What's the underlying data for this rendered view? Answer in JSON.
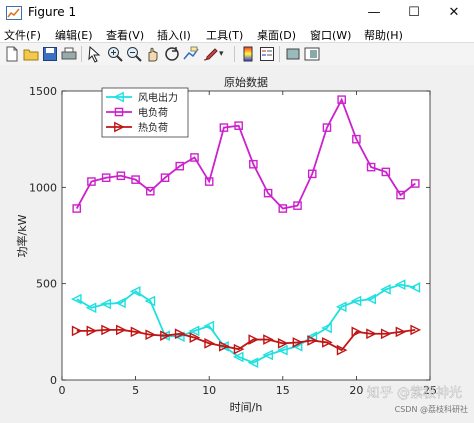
{
  "window": {
    "title": "Figure 1"
  },
  "controls": {
    "minimize": "—",
    "maximize": "☐",
    "close": "✕"
  },
  "menu": [
    "文件(F)",
    "编辑(E)",
    "查看(V)",
    "插入(I)",
    "工具(T)",
    "桌面(D)",
    "窗口(W)",
    "帮助(H)"
  ],
  "toolbar": [
    "new-file-icon",
    "open-folder-icon",
    "save-icon",
    "print-icon",
    "pointer-icon",
    "zoom-in-icon",
    "zoom-out-icon",
    "pan-icon",
    "rotate-icon",
    "data-cursor-icon",
    "brush-icon",
    "colorbar-icon",
    "legend-icon",
    "hide-plot-tools-icon",
    "show-plot-tools-icon"
  ],
  "watermark": {
    "main": "知乎 @紫极神光",
    "sub": "CSDN @荔枝科研社"
  },
  "chart_data": {
    "type": "line",
    "title": "原始数据",
    "xlabel": "时间/h",
    "ylabel": "功率/kW",
    "xlim": [
      0,
      25
    ],
    "ylim": [
      0,
      1500
    ],
    "xticks": [
      0,
      5,
      10,
      15,
      20,
      25
    ],
    "yticks": [
      0,
      500,
      1000,
      1500
    ],
    "grid": false,
    "legend_position": "top-left",
    "x": [
      1,
      2,
      3,
      4,
      5,
      6,
      7,
      8,
      9,
      10,
      11,
      12,
      13,
      14,
      15,
      16,
      17,
      18,
      19,
      20,
      21,
      22,
      23,
      24
    ],
    "series": [
      {
        "name": "风电出力",
        "color": "#1ee0e0",
        "marker": "triangle-left",
        "values": [
          420,
          375,
          395,
          400,
          460,
          410,
          230,
          225,
          255,
          280,
          175,
          120,
          90,
          130,
          155,
          175,
          225,
          270,
          380,
          410,
          420,
          470,
          495,
          480
        ]
      },
      {
        "name": "电负荷",
        "color": "#cc22cc",
        "marker": "square",
        "values": [
          890,
          1030,
          1050,
          1060,
          1040,
          980,
          1050,
          1110,
          1155,
          1030,
          1310,
          1320,
          1120,
          970,
          890,
          905,
          1070,
          1310,
          1455,
          1250,
          1105,
          1080,
          960,
          1020
        ]
      },
      {
        "name": "热负荷",
        "color": "#c01515",
        "marker": "triangle-right",
        "values": [
          255,
          255,
          260,
          260,
          250,
          235,
          230,
          240,
          220,
          190,
          175,
          160,
          210,
          210,
          190,
          195,
          205,
          195,
          155,
          250,
          240,
          240,
          250,
          260
        ]
      }
    ]
  }
}
